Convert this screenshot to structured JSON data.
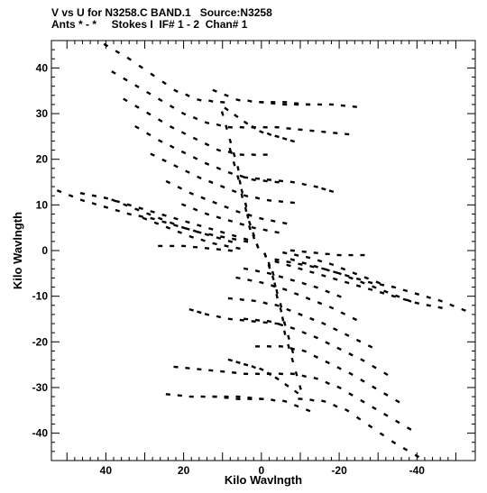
{
  "header": {
    "line1": "V vs U for N3258.C BAND.1   Source:N3258",
    "line2": "Ants * - *     Stokes I  IF# 1 - 2  Chan# 1"
  },
  "chart_data": {
    "type": "scatter",
    "title": "V vs U for N3258.C BAND.1   Source:N3258",
    "subtitle": "Ants * - *     Stokes I  IF# 1 - 2  Chan# 1",
    "xlabel": "Kilo Wavlngth",
    "ylabel": "Kilo Wavlngth",
    "xlim": [
      54,
      -55
    ],
    "ylim": [
      -46,
      46
    ],
    "x_reversed": true,
    "xticks": [
      40,
      20,
      0,
      -20,
      -40
    ],
    "yticks": [
      40,
      30,
      20,
      10,
      0,
      -10,
      -20,
      -30,
      -40
    ],
    "xtick_labels": [
      "40",
      "20",
      "0",
      "-20",
      "-40"
    ],
    "ytick_labels": [
      "40",
      "30",
      "20",
      "10",
      "0",
      "-10",
      "-20",
      "-30",
      "-40"
    ],
    "grid": false,
    "marker_color": "#000000",
    "series": [
      {
        "description": "uv-track arcs (dashes); each arc is sampled as points, conjugate points (-u,-v) included",
        "arcs": [
          {
            "points": [
              [
                40,
                45
              ],
              [
                34,
                42
              ],
              [
                28,
                38.5
              ],
              [
                22,
                35
              ],
              [
                16,
                33
              ],
              [
                10,
                32.5
              ]
            ]
          },
          {
            "points": [
              [
                38,
                39
              ],
              [
                32,
                36
              ],
              [
                26,
                33
              ],
              [
                20,
                30
              ],
              [
                14,
                28
              ],
              [
                8,
                27
              ],
              [
                2,
                27
              ]
            ]
          },
          {
            "points": [
              [
                35,
                33
              ],
              [
                29,
                30
              ],
              [
                23,
                27
              ],
              [
                17,
                24.5
              ],
              [
                11,
                22
              ],
              [
                5,
                21
              ],
              [
                -1,
                21
              ]
            ]
          },
          {
            "points": [
              [
                32,
                27
              ],
              [
                26,
                24
              ],
              [
                20,
                21.5
              ],
              [
                14,
                19
              ],
              [
                8,
                17
              ],
              [
                2,
                15.5
              ],
              [
                -4,
                15
              ]
            ]
          },
          {
            "points": [
              [
                28,
                21
              ],
              [
                22,
                18.5
              ],
              [
                16,
                16
              ],
              [
                10,
                14
              ],
              [
                4,
                12
              ],
              [
                -2,
                11
              ],
              [
                -8,
                10.5
              ]
            ]
          },
          {
            "points": [
              [
                24,
                15
              ],
              [
                18,
                12.5
              ],
              [
                12,
                10.5
              ],
              [
                6,
                8.5
              ],
              [
                0,
                7
              ],
              [
                -6,
                6
              ]
            ]
          },
          {
            "points": [
              [
                20,
                10
              ],
              [
                14,
                8
              ],
              [
                8,
                6.5
              ],
              [
                2,
                5
              ],
              [
                -4,
                4
              ]
            ]
          },
          {
            "points": [
              [
                52,
                13
              ],
              [
                46,
                11
              ],
              [
                40,
                9.5
              ],
              [
                34,
                8
              ],
              [
                28,
                7
              ],
              [
                22,
                5.5
              ],
              [
                16,
                4
              ],
              [
                10,
                3
              ],
              [
                4,
                2
              ]
            ]
          },
          {
            "points": [
              [
                46,
                12.5
              ],
              [
                40,
                11.5
              ],
              [
                34,
                10
              ],
              [
                28,
                8.5
              ],
              [
                22,
                7
              ],
              [
                16,
                5.5
              ],
              [
                10,
                4
              ],
              [
                4,
                2.5
              ]
            ]
          },
          {
            "points": [
              [
                38,
                11
              ],
              [
                32,
                9
              ],
              [
                26,
                7
              ],
              [
                20,
                5
              ],
              [
                14,
                3.5
              ],
              [
                8,
                2
              ]
            ]
          },
          {
            "points": [
              [
                30,
                7
              ],
              [
                24,
                5
              ],
              [
                18,
                3
              ],
              [
                12,
                1.5
              ],
              [
                6,
                0.5
              ]
            ]
          },
          {
            "points": [
              [
                26,
                1
              ],
              [
                20,
                1
              ],
              [
                14,
                0.5
              ],
              [
                8,
                0
              ]
            ]
          },
          {
            "points": [
              [
                12,
                35
              ],
              [
                6,
                33
              ],
              [
                0,
                32.5
              ],
              [
                -6,
                32
              ],
              [
                -12,
                32
              ]
            ]
          },
          {
            "points": [
              [
                9,
                31
              ],
              [
                4,
                28
              ],
              [
                0,
                26
              ],
              [
                -4,
                25
              ],
              [
                -8,
                24
              ]
            ]
          },
          {
            "points": [
              [
                10,
                30
              ],
              [
                8,
                24
              ],
              [
                6,
                18
              ],
              [
                5,
                12
              ],
              [
                3,
                6
              ],
              [
                1,
                1
              ]
            ]
          },
          {
            "points": [
              [
                8,
                22
              ],
              [
                6,
                16
              ],
              [
                4,
                10
              ],
              [
                3,
                5
              ],
              [
                1,
                1
              ]
            ]
          },
          {
            "points": [
              [
                18,
                -13
              ],
              [
                14,
                -14
              ],
              [
                8,
                -15
              ],
              [
                2,
                -15.5
              ],
              [
                -4,
                -16
              ]
            ]
          },
          {
            "points": [
              [
                22,
                -25.5
              ],
              [
                16,
                -26
              ],
              [
                10,
                -26.5
              ],
              [
                4,
                -27
              ],
              [
                -2,
                -27
              ]
            ]
          },
          {
            "points": [
              [
                24,
                -31.5
              ],
              [
                18,
                -32
              ],
              [
                12,
                -32
              ],
              [
                6,
                -32.5
              ],
              [
                0,
                -32.5
              ]
            ]
          }
        ]
      }
    ]
  }
}
